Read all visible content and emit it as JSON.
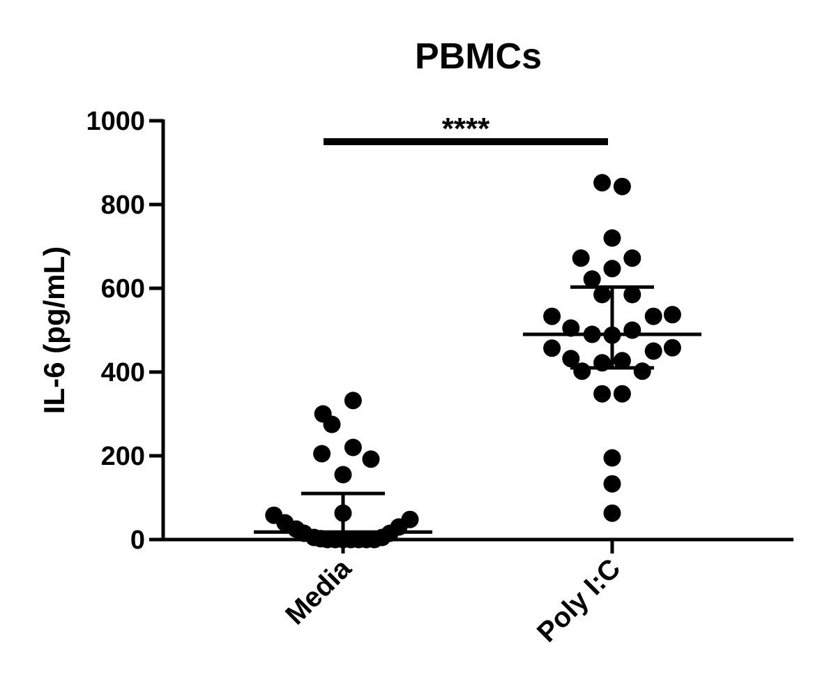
{
  "chart_data": {
    "type": "scatter",
    "title": "PBMCs",
    "xlabel": "",
    "ylabel": "IL-6 (pg/mL)",
    "ylim": [
      0,
      1000
    ],
    "yticks": [
      0,
      200,
      400,
      600,
      800,
      1000
    ],
    "ytick_labels": [
      "0",
      "200",
      "400",
      "600",
      "800",
      "1000"
    ],
    "categories": [
      "Media",
      "Poly I:C"
    ],
    "grid": false,
    "legend": "none",
    "point_color": "#000000",
    "groups": [
      {
        "category": "Media",
        "summary": {
          "mean": 18,
          "error_upper": 110,
          "error_lower": 0
        },
        "points": [
          {
            "dx": -0.62,
            "y": 58
          },
          {
            "dx": -0.52,
            "y": 40
          },
          {
            "dx": -0.42,
            "y": 25
          },
          {
            "dx": -0.35,
            "y": 15
          },
          {
            "dx": -0.26,
            "y": 5
          },
          {
            "dx": -0.2,
            "y": 2
          },
          {
            "dx": -0.14,
            "y": 0
          },
          {
            "dx": -0.07,
            "y": 0
          },
          {
            "dx": 0.0,
            "y": 0
          },
          {
            "dx": 0.07,
            "y": 0
          },
          {
            "dx": 0.14,
            "y": 0
          },
          {
            "dx": 0.21,
            "y": 0
          },
          {
            "dx": 0.28,
            "y": 0
          },
          {
            "dx": 0.35,
            "y": 5
          },
          {
            "dx": 0.42,
            "y": 15
          },
          {
            "dx": 0.5,
            "y": 30
          },
          {
            "dx": 0.6,
            "y": 48
          },
          {
            "dx": 0.0,
            "y": 63
          },
          {
            "dx": 0.0,
            "y": 155
          },
          {
            "dx": -0.19,
            "y": 205
          },
          {
            "dx": 0.25,
            "y": 192
          },
          {
            "dx": 0.09,
            "y": 220
          },
          {
            "dx": -0.18,
            "y": 300
          },
          {
            "dx": -0.1,
            "y": 275
          },
          {
            "dx": 0.09,
            "y": 332
          }
        ]
      },
      {
        "category": "Poly I:C",
        "summary": {
          "mean": 490,
          "error_upper": 603,
          "error_lower": 410
        },
        "points": [
          {
            "dx": -0.09,
            "y": 852
          },
          {
            "dx": 0.09,
            "y": 843
          },
          {
            "dx": 0.0,
            "y": 720
          },
          {
            "dx": -0.28,
            "y": 672
          },
          {
            "dx": 0.18,
            "y": 672
          },
          {
            "dx": 0.0,
            "y": 647
          },
          {
            "dx": -0.18,
            "y": 622
          },
          {
            "dx": -0.09,
            "y": 585
          },
          {
            "dx": 0.18,
            "y": 585
          },
          {
            "dx": -0.54,
            "y": 533
          },
          {
            "dx": 0.37,
            "y": 533
          },
          {
            "dx": 0.54,
            "y": 537
          },
          {
            "dx": -0.37,
            "y": 505
          },
          {
            "dx": 0.18,
            "y": 500
          },
          {
            "dx": -0.18,
            "y": 490
          },
          {
            "dx": 0.0,
            "y": 488
          },
          {
            "dx": -0.54,
            "y": 457
          },
          {
            "dx": 0.54,
            "y": 458
          },
          {
            "dx": 0.37,
            "y": 450
          },
          {
            "dx": -0.37,
            "y": 432
          },
          {
            "dx": -0.09,
            "y": 422
          },
          {
            "dx": 0.09,
            "y": 427
          },
          {
            "dx": -0.27,
            "y": 402
          },
          {
            "dx": 0.27,
            "y": 402
          },
          {
            "dx": -0.09,
            "y": 348
          },
          {
            "dx": 0.09,
            "y": 348
          },
          {
            "dx": 0.0,
            "y": 195
          },
          {
            "dx": 0.0,
            "y": 133
          },
          {
            "dx": 0.0,
            "y": 63
          }
        ]
      }
    ],
    "annotations": [
      {
        "type": "significance",
        "text": "****",
        "from": "Media",
        "to": "Poly I:C",
        "y": 950
      }
    ]
  }
}
